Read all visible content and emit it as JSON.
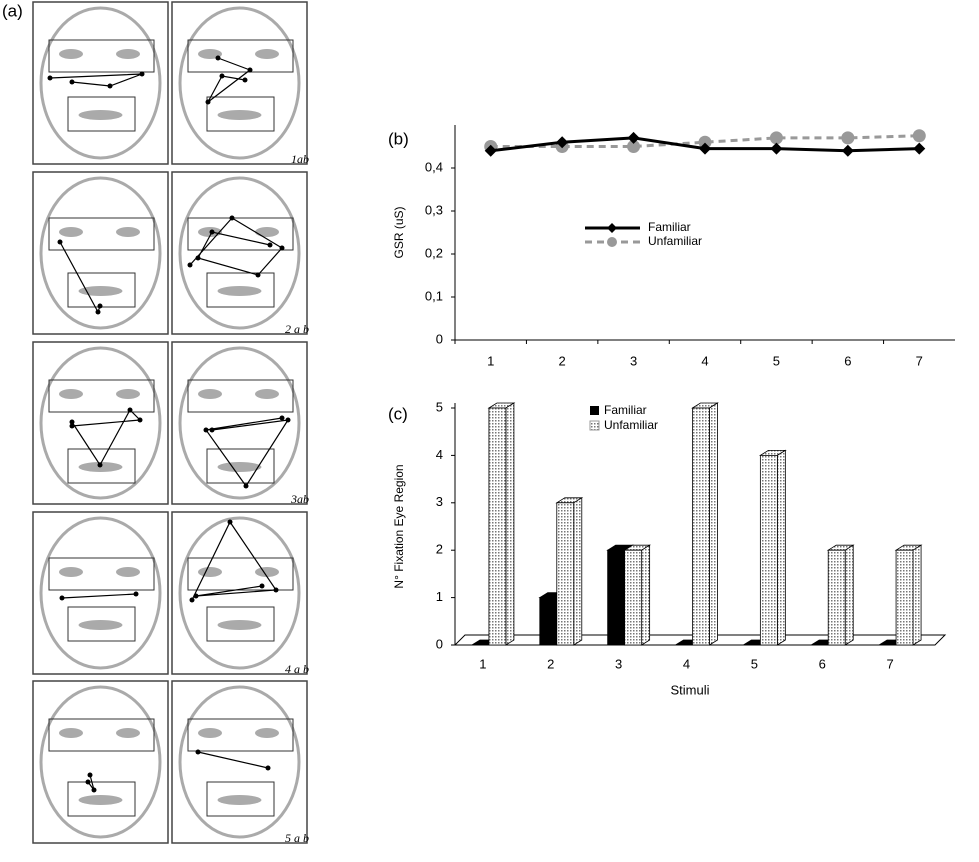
{
  "panel_a": {
    "label": "(a)",
    "rows": [
      "1ab",
      "2 a b",
      "3ab",
      "4 a b",
      "5 a b"
    ]
  },
  "chart_data": [
    {
      "type": "line",
      "panel_label": "(b)",
      "y_label": "GSR (uS)",
      "categories": [
        "1",
        "2",
        "3",
        "4",
        "5",
        "6",
        "7"
      ],
      "series": [
        {
          "name": "Familiar",
          "color": "#000000",
          "marker": "diamond",
          "dashed": false,
          "values": [
            0.44,
            0.46,
            0.47,
            0.445,
            0.445,
            0.44,
            0.445
          ]
        },
        {
          "name": "Unfamiliar",
          "color": "#999999",
          "marker": "circle",
          "dashed": true,
          "values": [
            0.45,
            0.45,
            0.45,
            0.46,
            0.47,
            0.47,
            0.475
          ]
        }
      ],
      "ylim": [
        0,
        0.5
      ],
      "yticks": [
        0,
        {
          "value": 0.1,
          "label": "0,1"
        },
        {
          "value": 0.2,
          "label": "0,2"
        },
        {
          "value": 0.3,
          "label": "0,3"
        },
        {
          "value": 0.4,
          "label": "0,4"
        }
      ]
    },
    {
      "type": "bar",
      "panel_label": "(c)",
      "y_label": "N° Fixation Eye Region",
      "x_label": "Stimuli",
      "categories": [
        "1",
        "2",
        "3",
        "4",
        "5",
        "6",
        "7"
      ],
      "series": [
        {
          "name": "Familiar",
          "color": "#000000",
          "values": [
            0,
            1,
            2,
            0,
            0,
            0,
            0
          ]
        },
        {
          "name": "Unfamiliar",
          "color": "#d4d4d4",
          "values": [
            5,
            3,
            2,
            5,
            4,
            2,
            2
          ]
        }
      ],
      "ylim": [
        0,
        5
      ],
      "yticks": [
        0,
        1,
        2,
        3,
        4,
        5
      ]
    }
  ]
}
